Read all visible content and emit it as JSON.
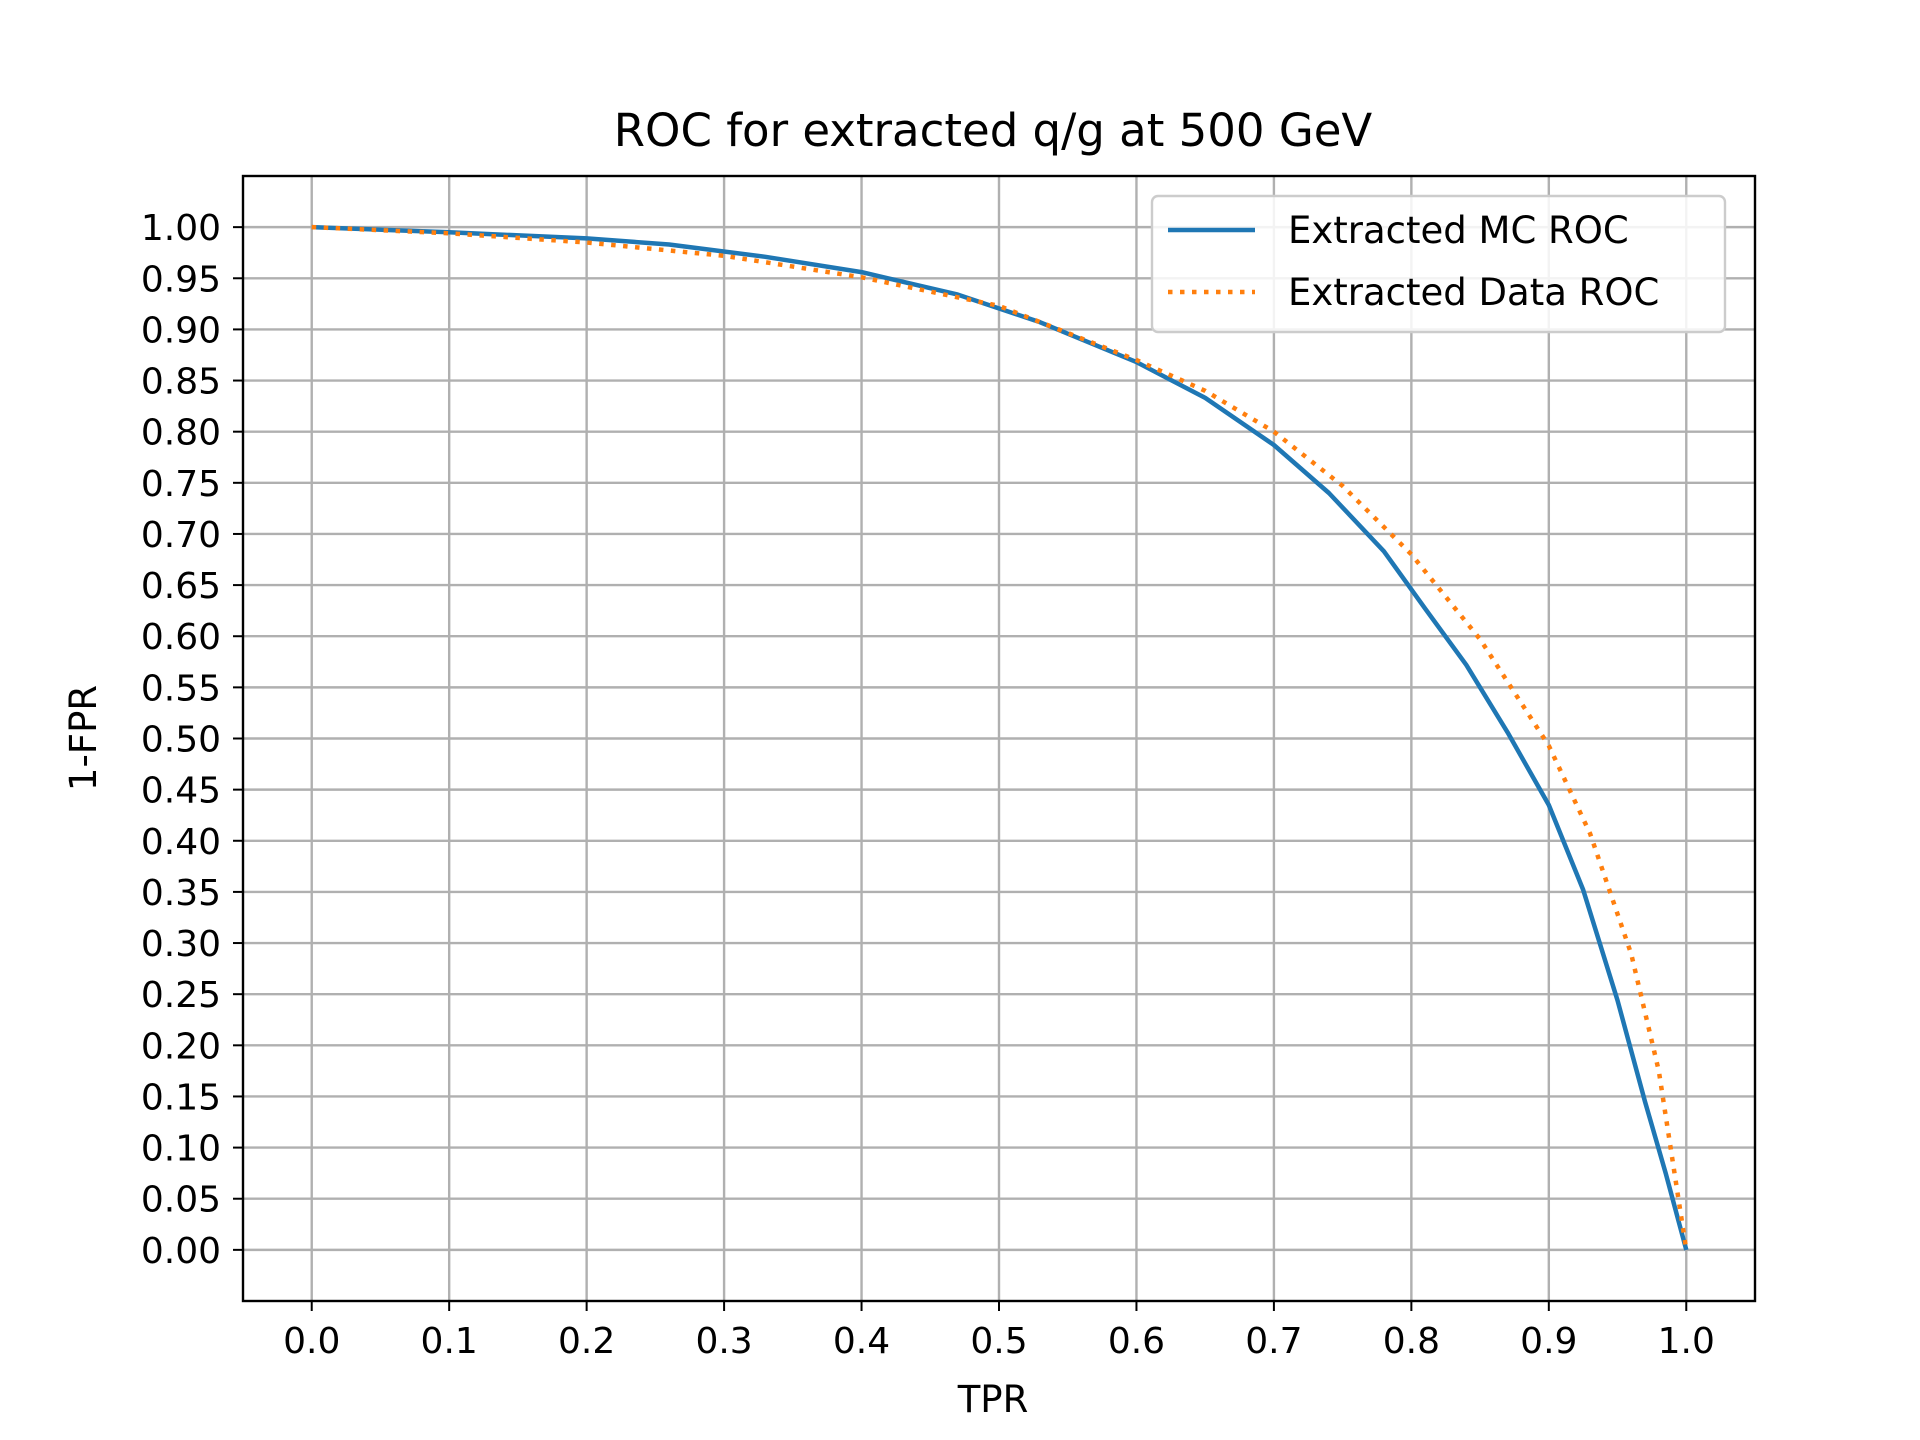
{
  "chart_data": {
    "type": "line",
    "title": "ROC for extracted q/g at 500 GeV",
    "xlabel": "TPR",
    "ylabel": "1-FPR",
    "xlim": [
      -0.05,
      1.05
    ],
    "ylim": [
      -0.05,
      1.05
    ],
    "grid": true,
    "legend_position": "top-right",
    "x_ticks": [
      "0.0",
      "0.1",
      "0.2",
      "0.3",
      "0.4",
      "0.5",
      "0.6",
      "0.7",
      "0.8",
      "0.9",
      "1.0"
    ],
    "y_ticks": [
      "0.00",
      "0.05",
      "0.10",
      "0.15",
      "0.20",
      "0.25",
      "0.30",
      "0.35",
      "0.40",
      "0.45",
      "0.50",
      "0.55",
      "0.60",
      "0.65",
      "0.70",
      "0.75",
      "0.80",
      "0.85",
      "0.90",
      "0.95",
      "1.00"
    ],
    "series": [
      {
        "name": "Extracted MC ROC",
        "color": "#1f77b4",
        "style": "solid",
        "x": [
          0.0,
          0.1,
          0.2,
          0.26,
          0.33,
          0.4,
          0.47,
          0.53,
          0.6,
          0.65,
          0.7,
          0.74,
          0.78,
          0.81,
          0.84,
          0.87,
          0.9,
          0.925,
          0.95,
          0.97,
          0.985,
          1.0
        ],
        "y": [
          1.0,
          0.995,
          0.989,
          0.983,
          0.971,
          0.956,
          0.934,
          0.907,
          0.868,
          0.833,
          0.787,
          0.74,
          0.683,
          0.627,
          0.572,
          0.506,
          0.435,
          0.352,
          0.244,
          0.145,
          0.075,
          0.0
        ]
      },
      {
        "name": "Extracted Data ROC",
        "color": "#ff7f0e",
        "style": "dotted",
        "x": [
          0.0,
          0.1,
          0.2,
          0.3,
          0.4,
          0.5,
          0.6,
          0.65,
          0.7,
          0.75,
          0.8,
          0.85,
          0.9,
          0.93,
          0.96,
          0.98,
          1.0
        ],
        "y": [
          1.0,
          0.994,
          0.985,
          0.972,
          0.951,
          0.923,
          0.87,
          0.84,
          0.8,
          0.747,
          0.68,
          0.597,
          0.493,
          0.407,
          0.289,
          0.175,
          0.0
        ]
      }
    ]
  }
}
